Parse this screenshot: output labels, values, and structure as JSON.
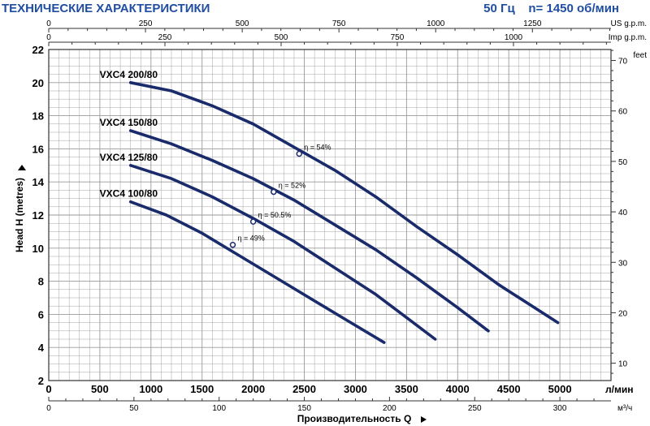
{
  "header": {
    "title": "ТЕХНИЧЕСКИЕ ХАРАКТЕРИСТИКИ",
    "frequency": "50 Гц",
    "speed": "n= 1450 об/мин"
  },
  "colors": {
    "curve": "#1a2b6b",
    "grid": "#9a9a9a",
    "header": "#1f4ea1",
    "text": "#000000"
  },
  "chart_data": {
    "type": "line",
    "title": "",
    "xlabel": "Производительность Q",
    "ylabel": "Head H (metres)",
    "grid": true,
    "xlim": [
      0,
      5500
    ],
    "ylim": [
      2,
      22
    ],
    "x_unit": "л/мин",
    "x_ticks": [
      0,
      500,
      1000,
      1500,
      2000,
      2500,
      3000,
      3500,
      4000,
      4500,
      5000
    ],
    "y_ticks": [
      2,
      4,
      6,
      8,
      10,
      12,
      14,
      16,
      18,
      20,
      22
    ],
    "secondary_axes": {
      "top_us": {
        "label": "US g.p.m.",
        "factor": 3.785,
        "ticks": [
          0,
          250,
          500,
          750,
          1000,
          1250
        ]
      },
      "top_imp": {
        "label": "Imp g.p.m.",
        "factor": 4.546,
        "ticks": [
          0,
          250,
          500,
          750,
          1000
        ]
      },
      "bottom_m3h": {
        "label": "м³/ч",
        "factor": 16.667,
        "ticks": [
          0,
          50,
          100,
          150,
          200,
          250,
          300
        ]
      },
      "right_feet": {
        "label": "feet",
        "factor": 0.3048,
        "ticks": [
          10,
          20,
          30,
          40,
          50,
          60,
          70
        ]
      }
    },
    "series": [
      {
        "name": "VXC4 200/80",
        "x": [
          800,
          1200,
          1600,
          2000,
          2400,
          2800,
          3200,
          3600,
          4000,
          4400,
          4980
        ],
        "y": [
          20,
          19.5,
          18.6,
          17.5,
          16.1,
          14.7,
          13.1,
          11.3,
          9.6,
          7.8,
          5.5
        ],
        "efficiency_label": "η = 54%",
        "efficiency_point": [
          2450,
          15.7
        ]
      },
      {
        "name": "VXC4 150/80",
        "x": [
          800,
          1200,
          1600,
          2000,
          2400,
          2800,
          3200,
          3600,
          4000,
          4300
        ],
        "y": [
          17.1,
          16.3,
          15.3,
          14.2,
          12.9,
          11.4,
          9.9,
          8.2,
          6.4,
          5.0
        ],
        "efficiency_label": "η = 52%",
        "efficiency_point": [
          2200,
          13.4
        ]
      },
      {
        "name": "VXC4 125/80",
        "x": [
          800,
          1200,
          1600,
          2000,
          2400,
          2800,
          3200,
          3780
        ],
        "y": [
          15.0,
          14.2,
          13.1,
          11.8,
          10.4,
          8.8,
          7.2,
          4.5
        ],
        "efficiency_label": "η = 50.5%",
        "efficiency_point": [
          2000,
          11.6
        ]
      },
      {
        "name": "VXC4 100/80",
        "x": [
          800,
          1150,
          1500,
          1850,
          2200,
          2550,
          2900,
          3280
        ],
        "y": [
          12.8,
          12.0,
          10.9,
          9.6,
          8.3,
          7.0,
          5.7,
          4.3
        ],
        "efficiency_label": "η = 49%",
        "efficiency_point": [
          1800,
          10.2
        ]
      }
    ]
  }
}
